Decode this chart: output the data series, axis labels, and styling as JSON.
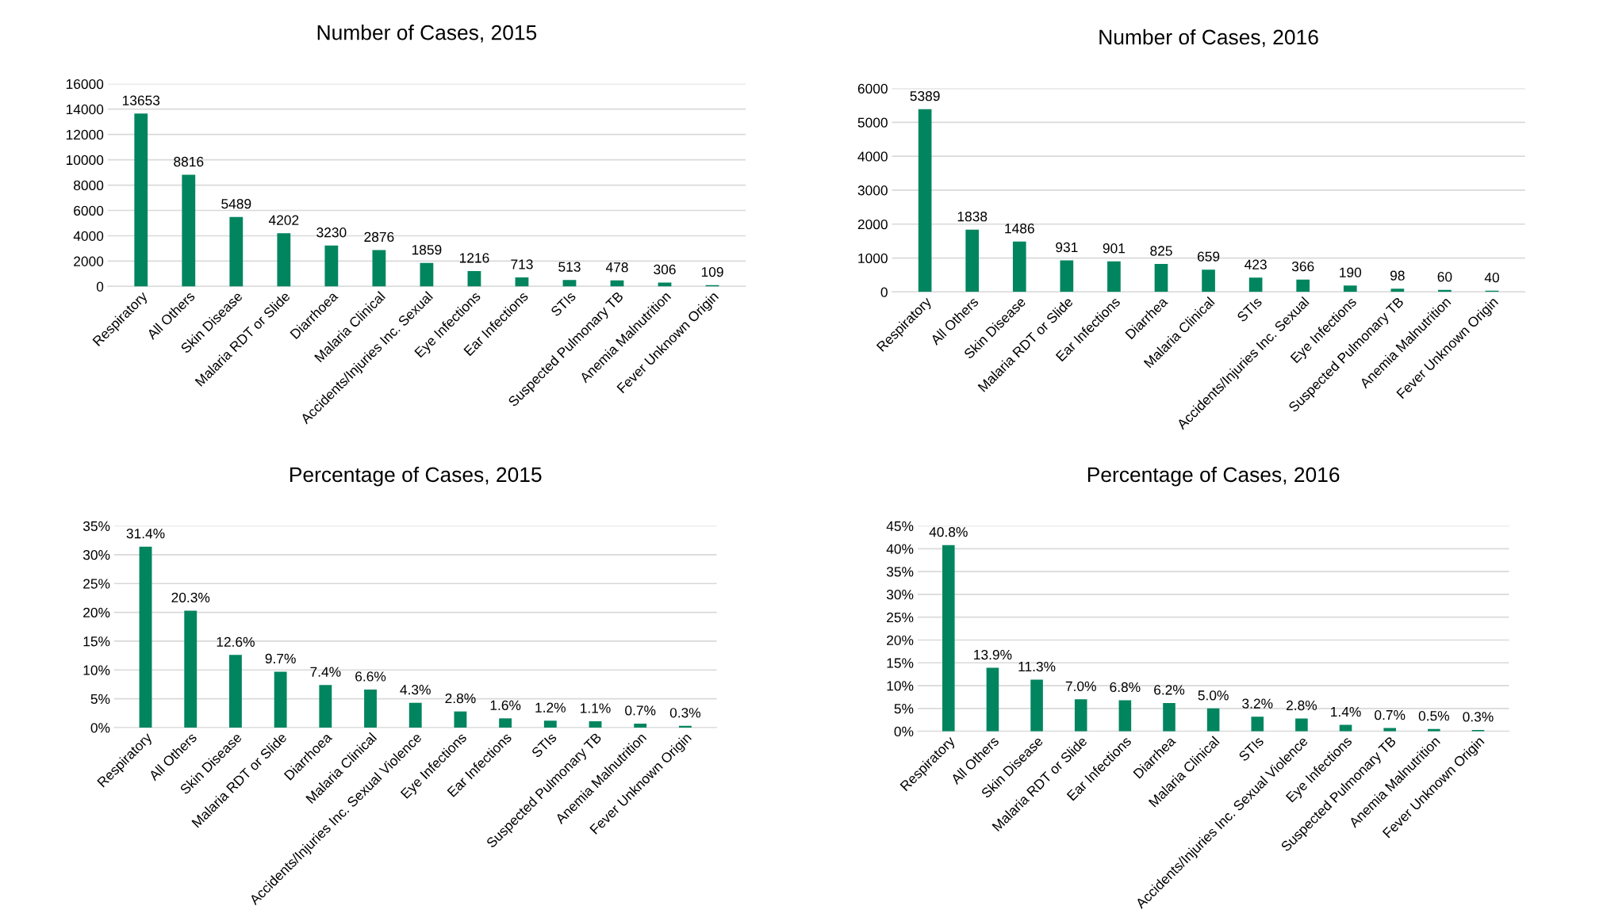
{
  "chart_data": [
    {
      "type": "bar",
      "title": "Number of Cases, 2015",
      "categories": [
        "Respiratory",
        "All Others",
        "Skin Disease",
        "Malaria RDT or Slide",
        "Diarrhoea",
        "Malaria Clinical",
        "Accidents/Injuries Inc. Sexual",
        "Eye Infections",
        "Ear Infections",
        "STIs",
        "Suspected Pulmonary TB",
        "Anemia Malnutrition",
        "Fever Unknown Origin"
      ],
      "values": [
        13653,
        8816,
        5489,
        4202,
        3230,
        2876,
        1859,
        1216,
        713,
        513,
        478,
        306,
        109
      ],
      "color": "#00855f",
      "data_labels": true,
      "grid": "y",
      "ylim": [
        0,
        16000
      ],
      "yticks": [
        0,
        2000,
        4000,
        6000,
        8000,
        10000,
        12000,
        14000,
        16000
      ]
    },
    {
      "type": "bar",
      "title": "Number of Cases, 2016",
      "categories": [
        "Respiratory",
        "All Others",
        "Skin Disease",
        "Malaria RDT or Slide",
        "Ear Infections",
        "Diarrhea",
        "Malaria Clinical",
        "STIs",
        "Accidents/Injuries Inc. Sexual",
        "Eye Infections",
        "Suspected Pulmonary TB",
        "Anemia Malnutrition",
        "Fever Unknown Origin"
      ],
      "values": [
        5389,
        1838,
        1486,
        931,
        901,
        825,
        659,
        423,
        366,
        190,
        98,
        60,
        40
      ],
      "color": "#00855f",
      "data_labels": true,
      "grid": "y",
      "ylim": [
        0,
        6000
      ],
      "yticks": [
        0,
        1000,
        2000,
        3000,
        4000,
        5000,
        6000
      ]
    },
    {
      "type": "bar",
      "title": "Percentage of Cases, 2015",
      "categories": [
        "Respiratory",
        "All Others",
        "Skin Disease",
        "Malaria RDT or Slide",
        "Diarrhoea",
        "Malaria Clinical",
        "Accidents/Injuries Inc. Sexual Violence",
        "Eye Infections",
        "Ear Infections",
        "STIs",
        "Suspected Pulmonary TB",
        "Anemia Malnutrition",
        "Fever Unknown Origin"
      ],
      "values": [
        31.4,
        20.3,
        12.6,
        9.7,
        7.4,
        6.6,
        4.3,
        2.8,
        1.6,
        1.2,
        1.1,
        0.7,
        0.3
      ],
      "value_labels": [
        "31.4%",
        "20.3%",
        "12.6%",
        "9.7%",
        "7.4%",
        "6.6%",
        "4.3%",
        "2.8%",
        "1.6%",
        "1.2%",
        "1.1%",
        "0.7%",
        "0.3%"
      ],
      "color": "#00855f",
      "grid": "y",
      "ylim": [
        0,
        35
      ],
      "yticks": [
        {
          "value": 0,
          "label": "0%"
        },
        {
          "value": 5,
          "label": "5%"
        },
        {
          "value": 10,
          "label": "10%"
        },
        {
          "value": 15,
          "label": "15%"
        },
        {
          "value": 20,
          "label": "20%"
        },
        {
          "value": 25,
          "label": "25%"
        },
        {
          "value": 30,
          "label": "30%"
        },
        {
          "value": 35,
          "label": "35%"
        }
      ]
    },
    {
      "type": "bar",
      "title": "Percentage of Cases, 2016",
      "categories": [
        "Respiratory",
        "All Others",
        "Skin Disease",
        "Malaria RDT or Slide",
        "Ear Infections",
        "Diarrhea",
        "Malaria Clinical",
        "STIs",
        "Accidents/Injuries Inc. Sexual Violence",
        "Eye Infections",
        "Suspected Pulmonary TB",
        "Anemia Malnutrition",
        "Fever Unknown Origin"
      ],
      "values": [
        40.8,
        13.9,
        11.3,
        7.0,
        6.8,
        6.2,
        5.0,
        3.2,
        2.8,
        1.4,
        0.7,
        0.5,
        0.3
      ],
      "value_labels": [
        "40.8%",
        "13.9%",
        "11.3%",
        "7.0%",
        "6.8%",
        "6.2%",
        "5.0%",
        "3.2%",
        "2.8%",
        "1.4%",
        "0.7%",
        "0.5%",
        "0.3%"
      ],
      "color": "#00855f",
      "grid": "y",
      "ylim": [
        0,
        45
      ],
      "yticks": [
        {
          "value": 0,
          "label": "0%"
        },
        {
          "value": 5,
          "label": "5%"
        },
        {
          "value": 10,
          "label": "10%"
        },
        {
          "value": 15,
          "label": "15%"
        },
        {
          "value": 20,
          "label": "20%"
        },
        {
          "value": 25,
          "label": "25%"
        },
        {
          "value": 30,
          "label": "30%"
        },
        {
          "value": 35,
          "label": "35%"
        },
        {
          "value": 40,
          "label": "40%"
        },
        {
          "value": 45,
          "label": "45%"
        }
      ]
    }
  ]
}
